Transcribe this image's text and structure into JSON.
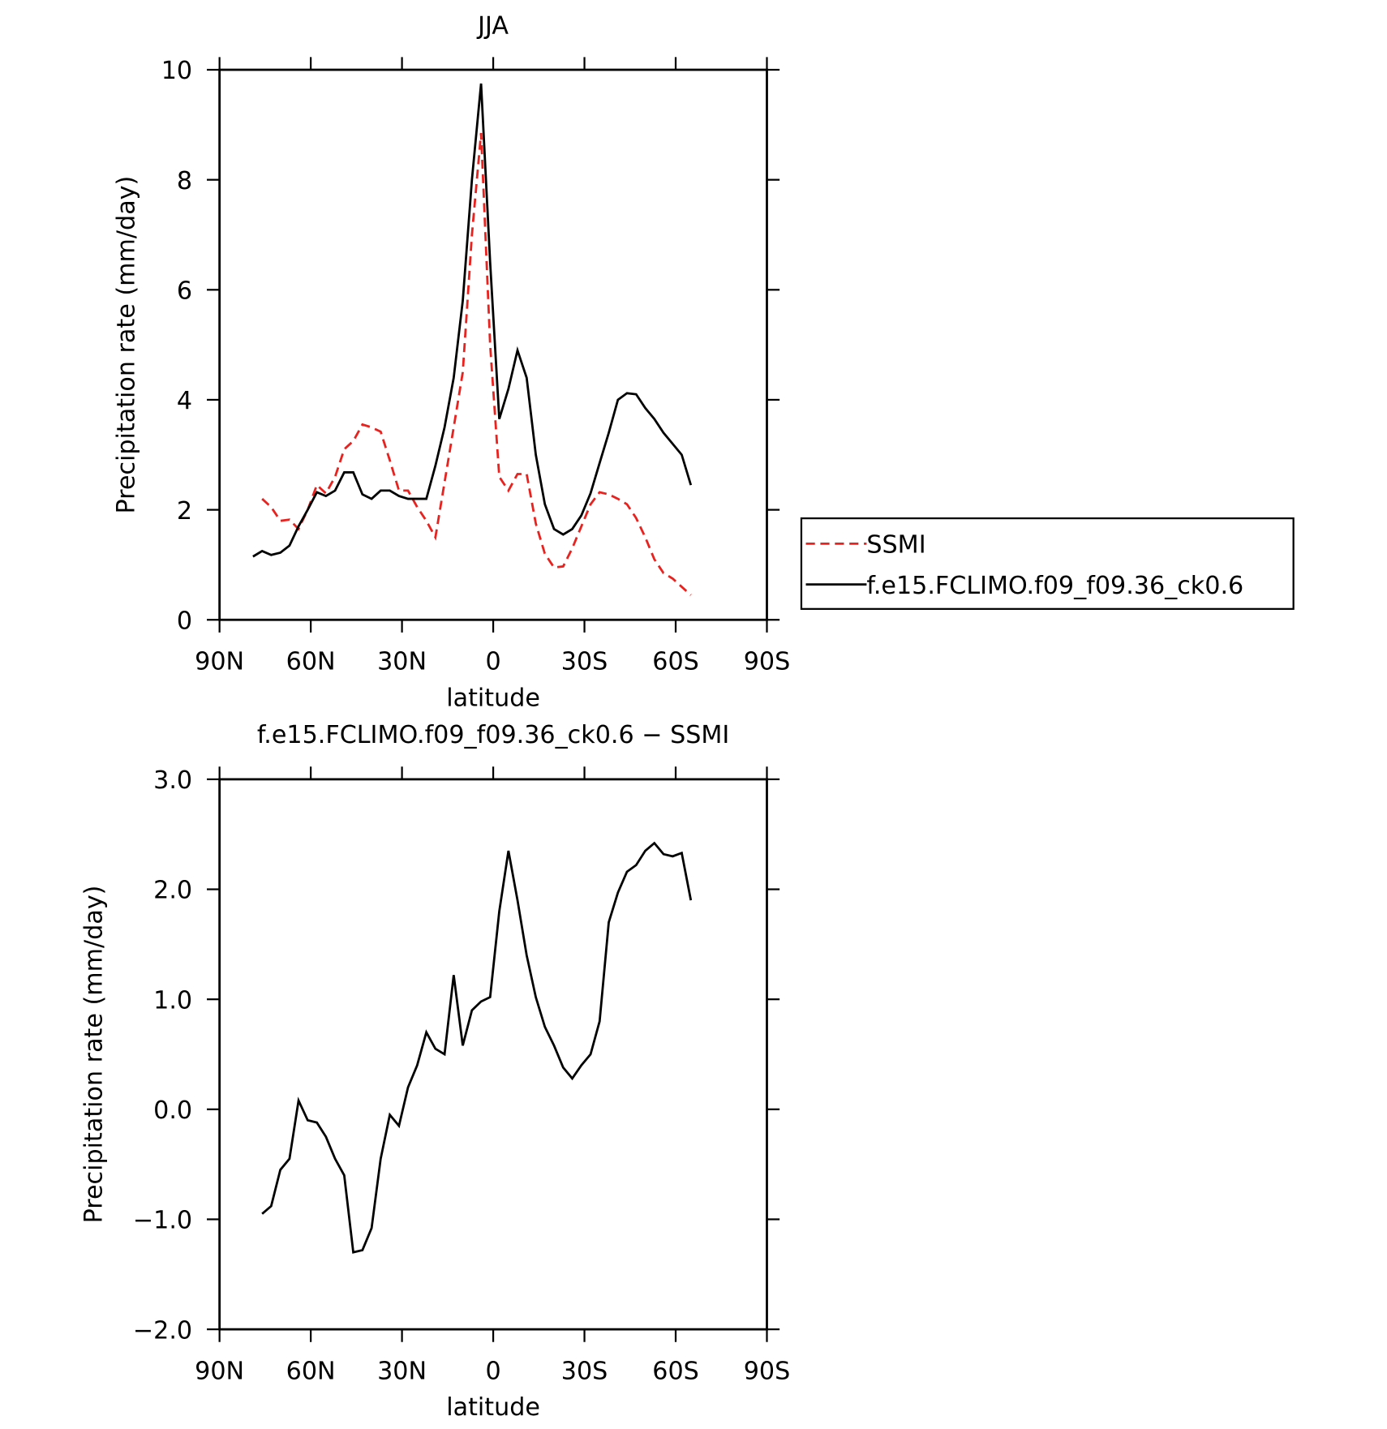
{
  "chart_data": [
    {
      "type": "line",
      "title": "JJA",
      "xlabel": "latitude",
      "ylabel": "Precipitation rate (mm/day)",
      "x": [
        79,
        76,
        73,
        70,
        67,
        64,
        61,
        58,
        55,
        52,
        49,
        46,
        43,
        40,
        37,
        34,
        31,
        28,
        25,
        22,
        19,
        16,
        13,
        10,
        7,
        4,
        1,
        -2,
        -5,
        -8,
        -11,
        -14,
        -17,
        -20,
        -23,
        -26,
        -29,
        -32,
        -35,
        -38,
        -41,
        -44,
        -47,
        -50,
        -53,
        -56,
        -59,
        -62,
        -65
      ],
      "series": [
        {
          "name": "SSMI",
          "color": "#e8221e",
          "dashed": true,
          "values": [
            null,
            2.2,
            2.05,
            1.8,
            1.82,
            1.65,
            2.0,
            2.45,
            2.3,
            2.6,
            3.1,
            3.25,
            3.55,
            3.5,
            3.42,
            2.9,
            2.35,
            2.35,
            2.05,
            1.8,
            1.5,
            2.5,
            3.5,
            4.5,
            7.0,
            8.85,
            5.0,
            2.6,
            2.35,
            2.65,
            2.65,
            1.75,
            1.2,
            0.95,
            0.97,
            1.3,
            1.7,
            2.1,
            2.32,
            2.28,
            2.2,
            2.1,
            1.85,
            1.5,
            1.1,
            0.85,
            0.75,
            0.6,
            0.45
          ]
        },
        {
          "name": "f.e15.FCLIMO.f09_f09.36_ck0.6",
          "color": "#000000",
          "dashed": false,
          "values": [
            1.15,
            1.25,
            1.18,
            1.22,
            1.35,
            1.7,
            2.0,
            2.32,
            2.25,
            2.35,
            2.68,
            2.68,
            2.28,
            2.2,
            2.35,
            2.35,
            2.25,
            2.2,
            2.2,
            2.2,
            2.8,
            3.5,
            4.4,
            5.8,
            8.0,
            9.75,
            6.5,
            3.65,
            4.2,
            4.9,
            4.4,
            3.0,
            2.1,
            1.65,
            1.55,
            1.65,
            1.9,
            2.3,
            2.85,
            3.4,
            4.0,
            4.12,
            4.1,
            3.85,
            3.65,
            3.4,
            3.2,
            3.0,
            2.45
          ]
        }
      ],
      "xlim": [
        90,
        -90
      ],
      "xticks": [
        {
          "value": 90,
          "label": "90N"
        },
        {
          "value": 60,
          "label": "60N"
        },
        {
          "value": 30,
          "label": "30N"
        },
        0,
        {
          "value": -30,
          "label": "30S"
        },
        {
          "value": -60,
          "label": "60S"
        },
        {
          "value": -90,
          "label": "90S"
        }
      ],
      "ylim": [
        0,
        10
      ],
      "yticks": [
        0,
        2,
        4,
        6,
        8,
        10
      ],
      "legend": "outside-right"
    },
    {
      "type": "line",
      "title": "f.e15.FCLIMO.f09_f09.36_ck0.6 − SSMI",
      "xlabel": "latitude",
      "ylabel": "Precipitation rate (mm/day)",
      "x": [
        79,
        76,
        73,
        70,
        67,
        64,
        61,
        58,
        55,
        52,
        49,
        46,
        43,
        40,
        37,
        34,
        31,
        28,
        25,
        22,
        19,
        16,
        13,
        10,
        7,
        4,
        1,
        -2,
        -5,
        -8,
        -11,
        -14,
        -17,
        -20,
        -23,
        -26,
        -29,
        -32,
        -35,
        -38,
        -41,
        -44,
        -47,
        -50,
        -53,
        -56,
        -59,
        -62,
        -65
      ],
      "series": [
        {
          "color": "#000000",
          "dashed": false,
          "values": [
            null,
            -0.95,
            -0.88,
            -0.55,
            -0.45,
            0.08,
            -0.1,
            -0.12,
            -0.25,
            -0.45,
            -0.6,
            -1.3,
            -1.28,
            -1.08,
            -0.45,
            -0.05,
            -0.15,
            0.2,
            0.4,
            0.7,
            0.55,
            0.5,
            1.22,
            0.58,
            0.9,
            0.98,
            1.02,
            1.8,
            2.35,
            1.9,
            1.4,
            1.02,
            0.75,
            0.58,
            0.38,
            0.28,
            0.4,
            0.5,
            0.8,
            1.7,
            1.97,
            2.16,
            2.22,
            2.35,
            2.42,
            2.32,
            2.3,
            2.33,
            1.9
          ]
        }
      ],
      "xlim": [
        90,
        -90
      ],
      "xticks": [
        {
          "value": 90,
          "label": "90N"
        },
        {
          "value": 60,
          "label": "60N"
        },
        {
          "value": 30,
          "label": "30N"
        },
        0,
        {
          "value": -30,
          "label": "30S"
        },
        {
          "value": -60,
          "label": "60S"
        },
        {
          "value": -90,
          "label": "90S"
        }
      ],
      "ylim": [
        -2,
        3
      ],
      "yticks": [
        {
          "value": -2,
          "label": "−2.0"
        },
        {
          "value": -1,
          "label": "−1.0"
        },
        {
          "value": 0,
          "label": "0.0"
        },
        {
          "value": 1,
          "label": "1.0"
        },
        {
          "value": 2,
          "label": "2.0"
        },
        {
          "value": 3,
          "label": "3.0"
        }
      ]
    }
  ]
}
